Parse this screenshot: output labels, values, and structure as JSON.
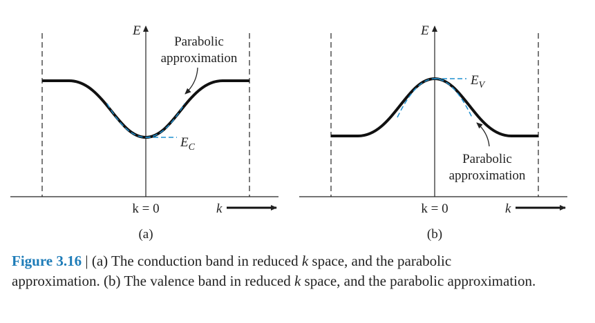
{
  "panels": [
    {
      "axis_label": "E",
      "annotation": [
        "Parabolic",
        "approximation"
      ],
      "level_label": {
        "main": "E",
        "sub": "C"
      },
      "origin_label": "k = 0",
      "k_label": "k",
      "tag": "(a)"
    },
    {
      "axis_label": "E",
      "annotation": [
        "Parabolic",
        "approximation"
      ],
      "level_label": {
        "main": "E",
        "sub": "V"
      },
      "origin_label": "k = 0",
      "k_label": "k",
      "tag": "(b)"
    }
  ],
  "caption": {
    "number": "Figure 3.16",
    "separator": "|",
    "parts": [
      "(a) The conduction band in reduced",
      "k",
      "space, and the parabolic approximation. (b) The valence band in reduced",
      "k",
      "space, and the parabolic approximation."
    ]
  }
}
